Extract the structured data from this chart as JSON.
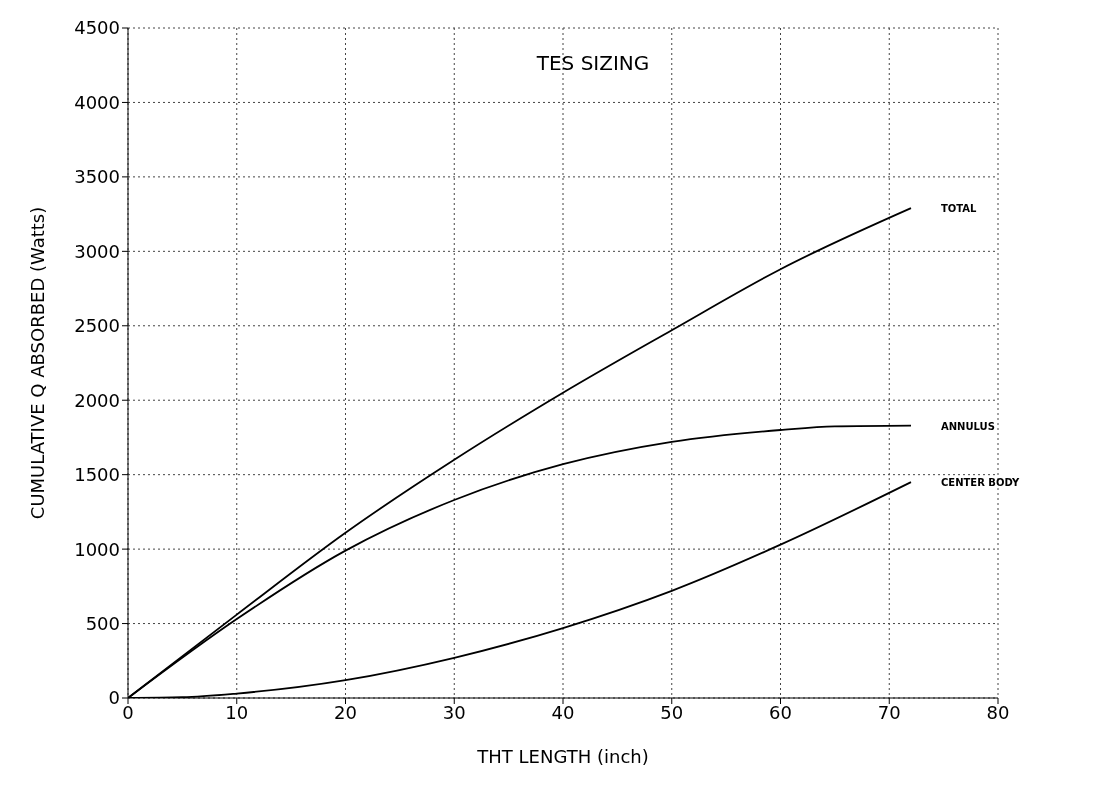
{
  "chart_data": {
    "type": "line",
    "title": "TES SIZING",
    "xlabel": "THT LENGTH (inch)",
    "ylabel": "CUMULATIVE Q ABSORBED (Watts)",
    "series": [
      {
        "name": "TOTAL",
        "color": "#000000",
        "x": [
          0,
          10,
          20,
          30,
          40,
          50,
          60,
          72
        ],
        "values": [
          0,
          560,
          1110,
          1600,
          2050,
          2470,
          2880,
          3290
        ]
      },
      {
        "name": "ANNULUS",
        "color": "#000000",
        "x": [
          0,
          10,
          20,
          30,
          40,
          50,
          60,
          65,
          72
        ],
        "values": [
          0,
          530,
          990,
          1330,
          1570,
          1720,
          1800,
          1825,
          1830
        ]
      },
      {
        "name": "CENTER BODY",
        "color": "#000000",
        "x": [
          0,
          5,
          10,
          20,
          30,
          40,
          50,
          60,
          72
        ],
        "values": [
          0,
          5,
          30,
          120,
          270,
          470,
          720,
          1030,
          1450
        ]
      }
    ],
    "xlim": [
      0,
      80
    ],
    "xticks": [
      0,
      10,
      20,
      30,
      40,
      50,
      60,
      70,
      80
    ],
    "ylim": [
      0,
      4500
    ],
    "yticks": [
      0,
      500,
      1000,
      1500,
      2000,
      2500,
      3000,
      3500,
      4000,
      4500
    ],
    "grid": true,
    "marker": "none",
    "line_style": "solid"
  }
}
